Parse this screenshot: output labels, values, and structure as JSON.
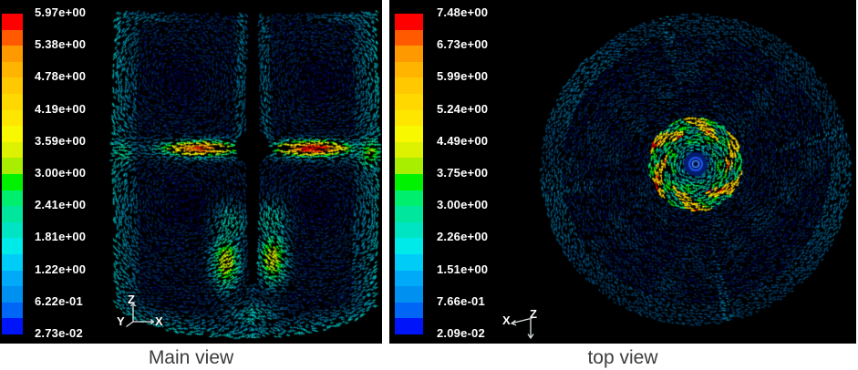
{
  "figure": {
    "page_bg": "#ffffff",
    "panel_bg": "#000000",
    "caption_color": "#3c3c3c",
    "label_color": "#ffffff",
    "colormap_top_to_bottom": [
      "#ff0000",
      "#ff5a00",
      "#ff9900",
      "#ffb400",
      "#ffc800",
      "#ffd800",
      "#ffe600",
      "#f8f800",
      "#ddf200",
      "#a8ee00",
      "#00f200",
      "#00ee6e",
      "#00e69c",
      "#00e4c4",
      "#00eaea",
      "#00ccf8",
      "#00aaf8",
      "#0090f0",
      "#0066f6",
      "#0014fa"
    ],
    "panels": [
      {
        "name": "main-view",
        "caption": "Main view",
        "colorbar_labels": [
          "5.97e+00",
          "5.38e+00",
          "4.78e+00",
          "4.19e+00",
          "3.59e+00",
          "3.00e+00",
          "2.41e+00",
          "1.81e+00",
          "1.22e+00",
          "6.22e-01",
          "2.73e-02"
        ],
        "colorbar_min": 0.0273,
        "colorbar_max": 5.97,
        "axis_labels": {
          "up": "Z",
          "right": "X",
          "front": "Y"
        }
      },
      {
        "name": "top-view",
        "caption": "top view",
        "colorbar_labels": [
          "7.48e+00",
          "6.73e+00",
          "5.99e+00",
          "5.24e+00",
          "4.49e+00",
          "3.75e+00",
          "3.00e+00",
          "2.26e+00",
          "1.51e+00",
          "7.66e-01",
          "2.09e-02"
        ],
        "colorbar_min": 0.0209,
        "colorbar_max": 7.48,
        "axis_labels": {
          "left": "X",
          "down": "Z"
        }
      }
    ]
  },
  "chart_data": [
    {
      "type": "heatmap",
      "subtype": "velocity-vector-field",
      "title": "Main view",
      "legend_position": "left",
      "colorbar_tick_values": [
        5.97,
        5.38,
        4.78,
        4.19,
        3.59,
        3.0,
        2.41,
        1.81,
        1.22,
        0.622,
        0.0273
      ],
      "colorbar_bands": 20,
      "value_range": [
        0.0273,
        5.97
      ],
      "axes_triad": [
        "Z",
        "Y",
        "X"
      ]
    },
    {
      "type": "heatmap",
      "subtype": "velocity-vector-field",
      "title": "top view",
      "legend_position": "left",
      "colorbar_tick_values": [
        7.48,
        6.73,
        5.99,
        5.24,
        4.49,
        3.75,
        3.0,
        2.26,
        1.51,
        0.766,
        0.0209
      ],
      "colorbar_bands": 20,
      "value_range": [
        0.0209,
        7.48
      ],
      "axes_triad": [
        "X",
        "Z"
      ]
    }
  ]
}
